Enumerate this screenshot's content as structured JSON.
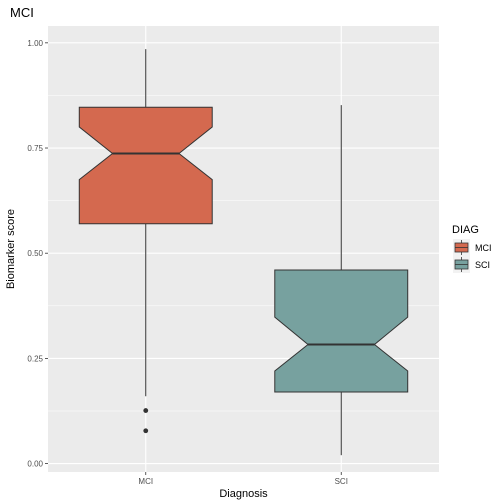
{
  "chart_data": {
    "type": "boxplot",
    "notched": true,
    "title": "MCI",
    "xlabel": "Diagnosis",
    "ylabel": "Biomarker score",
    "ylim": [
      -0.02,
      1.04
    ],
    "yticks": [
      0.0,
      0.25,
      0.5,
      0.75,
      1.0
    ],
    "ytick_labels": [
      "0.00",
      "0.25",
      "0.50",
      "0.75",
      "1.00"
    ],
    "categories": [
      "MCI",
      "SCI"
    ],
    "legend": {
      "title": "DIAG",
      "position": "right",
      "entries": [
        "MCI",
        "SCI"
      ]
    },
    "grid": true,
    "series": [
      {
        "name": "MCI",
        "color": "#D4694F",
        "whisker_low": 0.16,
        "q1": 0.57,
        "notch_low": 0.675,
        "median": 0.737,
        "notch_high": 0.8,
        "q3": 0.847,
        "whisker_high": 0.985,
        "outliers": [
          0.126,
          0.078
        ]
      },
      {
        "name": "SCI",
        "color": "#77A19F",
        "whisker_low": 0.02,
        "q1": 0.17,
        "notch_low": 0.22,
        "median": 0.283,
        "notch_high": 0.348,
        "q3": 0.46,
        "whisker_high": 0.852,
        "outliers": []
      }
    ]
  }
}
